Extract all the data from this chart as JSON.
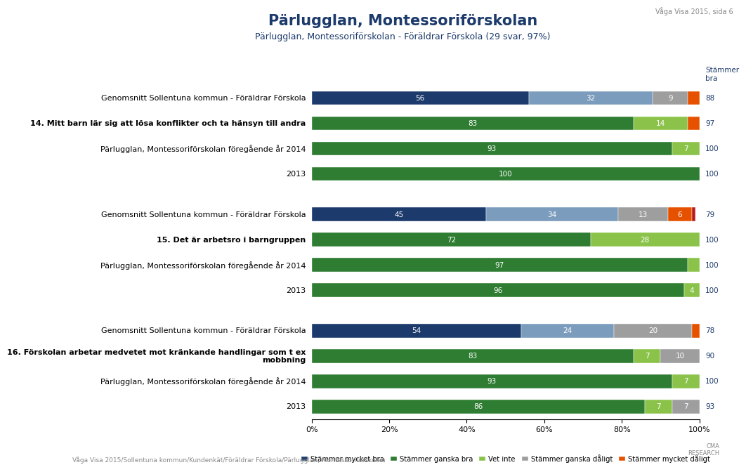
{
  "title": "Pärlugglan, Montessoriförskolan",
  "subtitle": "Pärlugglan, Montessoriförskolan - Föräldrar Förskola (29 svar, 97%)",
  "page_label": "Våga Visa 2015, sida 6",
  "footer": "Våga Visa 2015/Sollentuna kommun/Kundenkät/Föräldrar Förskola/Pärlugglan, Montessoriförskolan",
  "legend": [
    "Stämmer mycket bra",
    "Stämmer ganska bra",
    "Vet inte",
    "Stämmer ganska dåligt",
    "Stämmer mycket dåligt"
  ],
  "legend_colors": [
    "#1c3a6b",
    "#2e7d32",
    "#8bc34a",
    "#9e9e9e",
    "#e65100"
  ],
  "genomsnitt_colors": [
    "#1c3a6b",
    "#7b9cbc",
    "#9e9e9e",
    "#e65100",
    "#b71c1c"
  ],
  "question_colors": [
    "#2e7d32",
    "#388e3c",
    "#8bc34a",
    "#9e9e9e",
    "#e65100"
  ],
  "groups": [
    {
      "rows": [
        {
          "label": "Genomsnitt Sollentuna kommun - Föräldrar Förskola",
          "values": [
            56,
            32,
            9,
            3,
            0
          ],
          "stammar_bra": 88,
          "bold": false,
          "is_genomsnitt": true
        },
        {
          "label": "14. Mitt barn lär sig att lösa konflikter och ta hänsyn till andra",
          "values": [
            83,
            0,
            14,
            0,
            3
          ],
          "stammar_bra": 97,
          "bold": true,
          "is_genomsnitt": false
        },
        {
          "label": "Pärlugglan, Montessoriförskolan föregående år 2014",
          "values": [
            93,
            0,
            7,
            0,
            0
          ],
          "stammar_bra": 100,
          "bold": false,
          "is_genomsnitt": false
        },
        {
          "label": "2013",
          "values": [
            100,
            0,
            0,
            0,
            0
          ],
          "stammar_bra": 100,
          "bold": false,
          "is_genomsnitt": false
        }
      ]
    },
    {
      "rows": [
        {
          "label": "Genomsnitt Sollentuna kommun - Föräldrar Förskola",
          "values": [
            45,
            34,
            13,
            6,
            1
          ],
          "stammar_bra": 79,
          "bold": false,
          "is_genomsnitt": true
        },
        {
          "label": "15. Det är arbetsro i barngruppen",
          "values": [
            72,
            0,
            28,
            0,
            0
          ],
          "stammar_bra": 100,
          "bold": true,
          "is_genomsnitt": false
        },
        {
          "label": "Pärlugglan, Montessoriförskolan föregående år 2014",
          "values": [
            97,
            0,
            3,
            0,
            0
          ],
          "stammar_bra": 100,
          "bold": false,
          "is_genomsnitt": false
        },
        {
          "label": "2013",
          "values": [
            96,
            0,
            4,
            0,
            0
          ],
          "stammar_bra": 100,
          "bold": false,
          "is_genomsnitt": false
        }
      ]
    },
    {
      "rows": [
        {
          "label": "Genomsnitt Sollentuna kommun - Föräldrar Förskola",
          "values": [
            54,
            24,
            20,
            2,
            0
          ],
          "stammar_bra": 78,
          "bold": false,
          "is_genomsnitt": true
        },
        {
          "label": "16. Förskolan arbetar medvetet mot kränkande handlingar som t ex\nmobbning",
          "values": [
            83,
            0,
            7,
            10,
            0
          ],
          "stammar_bra": 90,
          "bold": true,
          "is_genomsnitt": false
        },
        {
          "label": "Pärlugglan, Montessoriförskolan föregående år 2014",
          "values": [
            93,
            0,
            7,
            0,
            0
          ],
          "stammar_bra": 100,
          "bold": false,
          "is_genomsnitt": false
        },
        {
          "label": "2013",
          "values": [
            86,
            0,
            7,
            7,
            0
          ],
          "stammar_bra": 93,
          "bold": false,
          "is_genomsnitt": false
        }
      ]
    }
  ]
}
